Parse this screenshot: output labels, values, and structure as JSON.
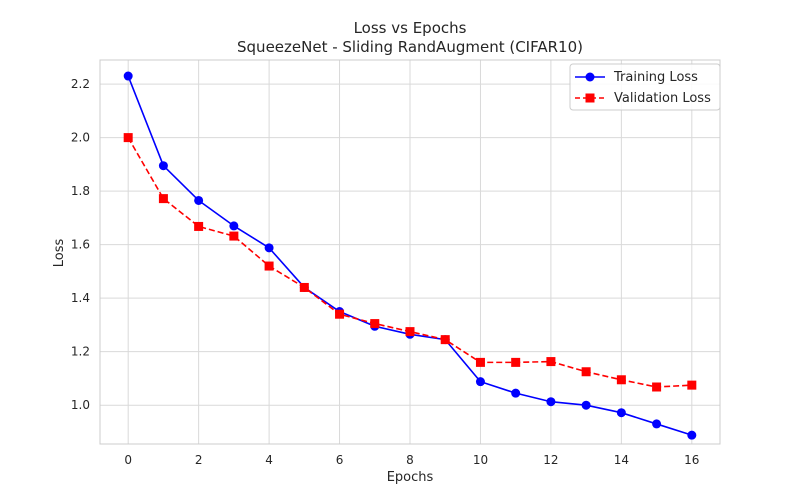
{
  "chart_data": {
    "type": "line",
    "title": "Loss vs Epochs",
    "subtitle": "SqueezeNet - Sliding RandAugment (CIFAR10)",
    "xlabel": "Epochs",
    "ylabel": "Loss",
    "xlim": [
      -0.8,
      16.8
    ],
    "ylim": [
      0.855,
      2.29
    ],
    "xticks": [
      0,
      2,
      4,
      6,
      8,
      10,
      12,
      14,
      16
    ],
    "yticks": [
      1.0,
      1.2,
      1.4,
      1.6,
      1.8,
      2.0,
      2.2
    ],
    "xtick_labels": [
      "0",
      "2",
      "4",
      "6",
      "8",
      "10",
      "12",
      "14",
      "16"
    ],
    "ytick_labels": [
      "1.0",
      "1.2",
      "1.4",
      "1.6",
      "1.8",
      "2.0",
      "2.2"
    ],
    "grid": true,
    "legend_position": "top-right",
    "x": [
      0,
      1,
      2,
      3,
      4,
      5,
      6,
      7,
      8,
      9,
      10,
      11,
      12,
      13,
      14,
      15,
      16
    ],
    "series": [
      {
        "name": "Training Loss",
        "color": "#0000ff",
        "line_style": "solid",
        "marker": "circle",
        "values": [
          2.23,
          1.895,
          1.765,
          1.67,
          1.588,
          1.44,
          1.35,
          1.295,
          1.265,
          1.245,
          1.088,
          1.045,
          1.013,
          1.0,
          0.972,
          0.93,
          0.888
        ]
      },
      {
        "name": "Validation Loss",
        "color": "#ff0000",
        "line_style": "dashed",
        "marker": "square",
        "values": [
          2.0,
          1.772,
          1.668,
          1.632,
          1.52,
          1.44,
          1.34,
          1.305,
          1.275,
          1.245,
          1.16,
          1.16,
          1.163,
          1.125,
          1.095,
          1.068,
          1.075
        ]
      }
    ]
  }
}
